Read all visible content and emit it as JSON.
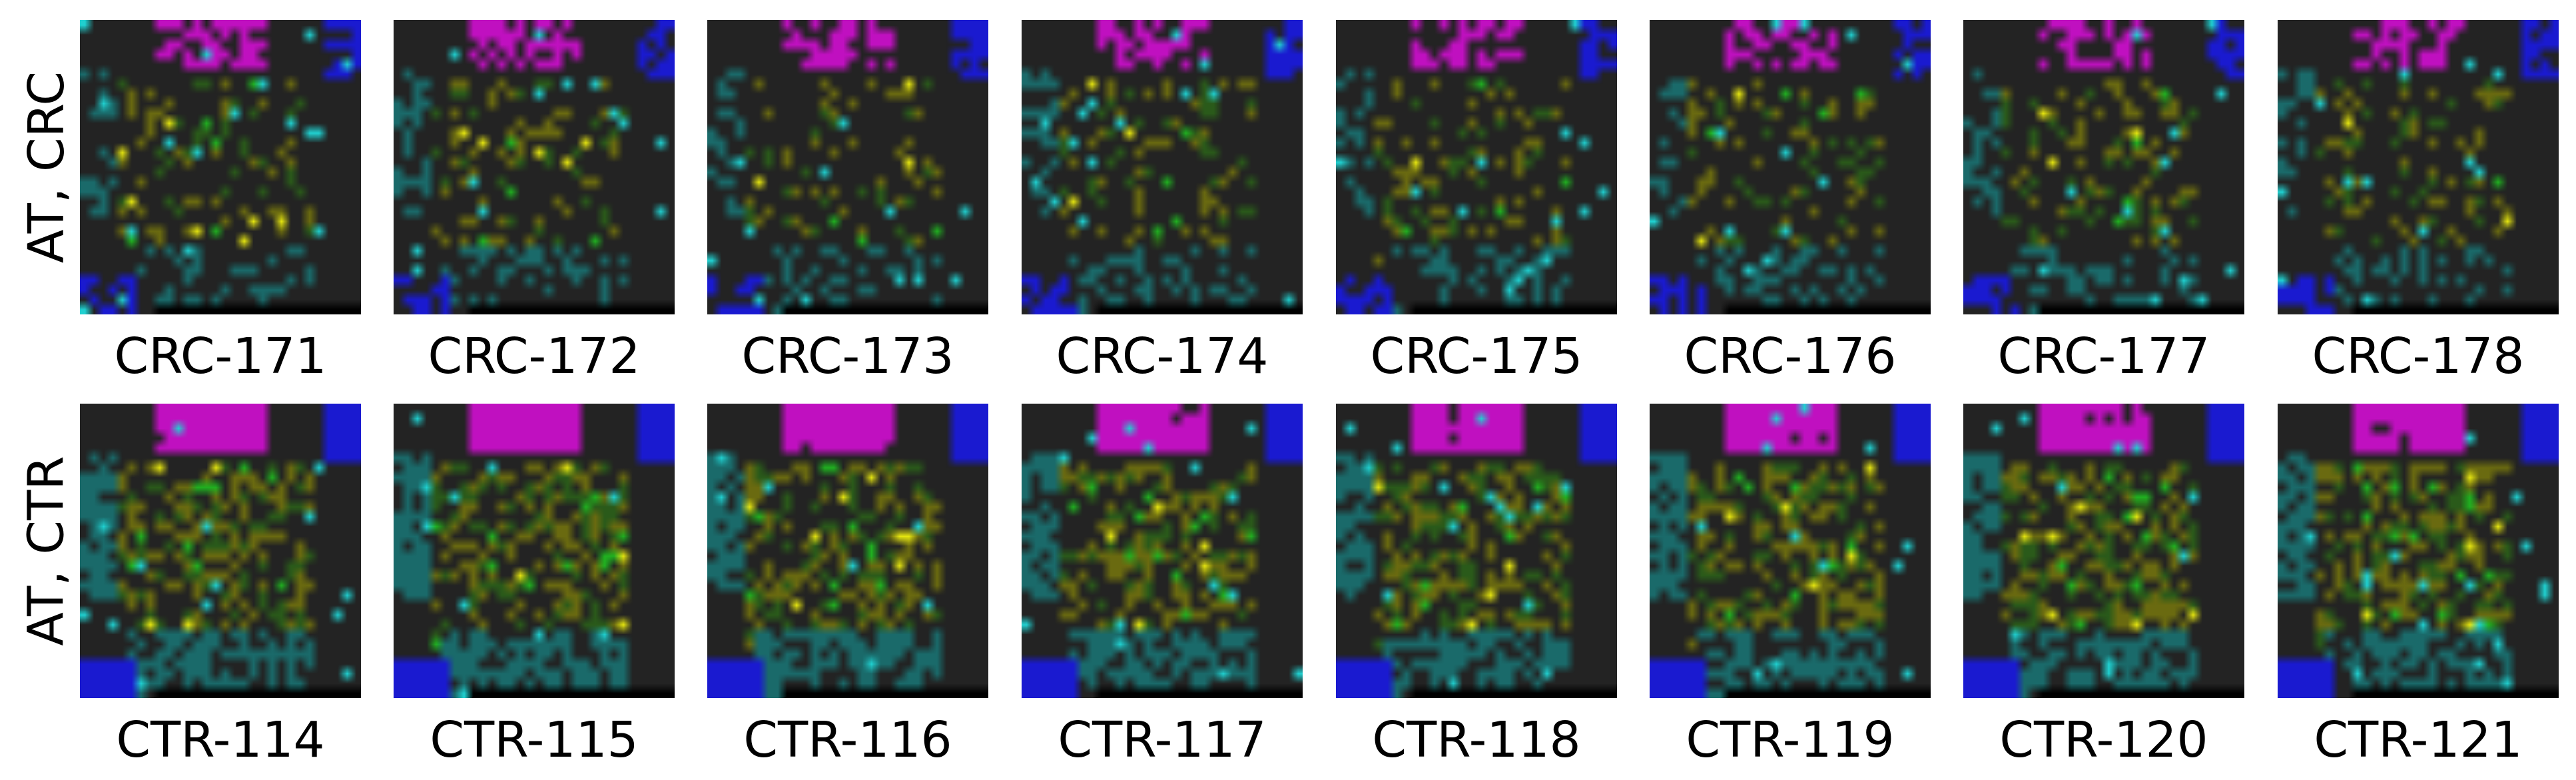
{
  "rows": [
    {
      "label": "AT, CRC",
      "tiles": [
        "CRC-171",
        "CRC-172",
        "CRC-173",
        "CRC-174",
        "CRC-175",
        "CRC-176",
        "CRC-177",
        "CRC-178"
      ],
      "fill_level": 0.35
    },
    {
      "label": "AT, CTR",
      "tiles": [
        "CTR-114",
        "CTR-115",
        "CTR-116",
        "CTR-117",
        "CTR-118",
        "CTR-119",
        "CTR-120",
        "CTR-121"
      ],
      "fill_level": 0.75
    }
  ],
  "colors": {
    "background": "#232323",
    "magenta": "#c010c0",
    "blue": "#1a1ad0",
    "teal": "#1a6a6a",
    "olive": "#6a6a10",
    "yellow": "#e6e610",
    "green": "#20b020",
    "cyan": "#20d0d0",
    "black_bar": "#000000"
  }
}
